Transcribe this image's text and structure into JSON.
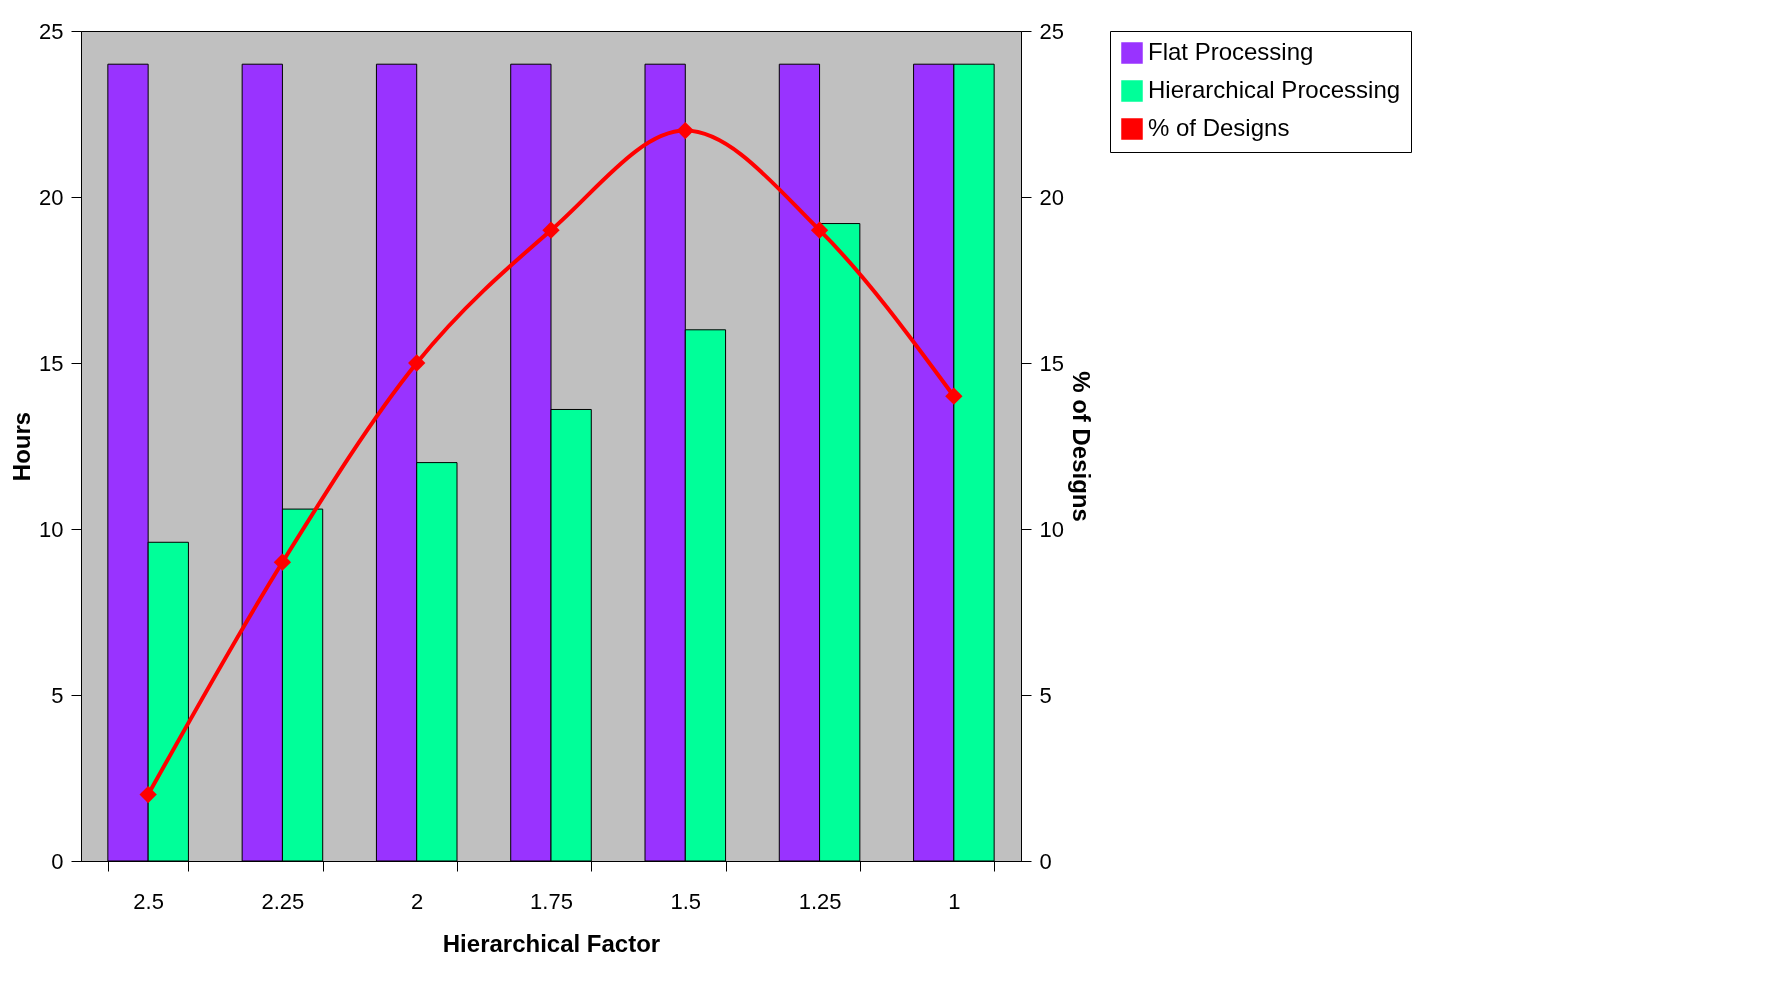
{
  "chart_data": {
    "type": "bar",
    "xlabel": "Hierarchical Factor",
    "ylabel": "Hours",
    "y2label": "% of Designs",
    "categories": [
      "2.5",
      "2.25",
      "2",
      "1.75",
      "1.5",
      "1.25",
      "1"
    ],
    "series": [
      {
        "name": "Flat Processing",
        "color": "#9933ff",
        "values": [
          24,
          24,
          24,
          24,
          24,
          24,
          24
        ]
      },
      {
        "name": "Hierarchical Processing",
        "color": "#00ff99",
        "values": [
          9.6,
          10.6,
          12,
          13.6,
          16,
          19.2,
          24
        ]
      },
      {
        "name": "% of Designs",
        "type": "line",
        "axis": "y2",
        "color": "#ff0000",
        "marker": "diamond",
        "values": [
          2,
          9,
          15,
          19,
          22,
          19,
          14
        ]
      }
    ],
    "ylim": [
      0,
      25
    ],
    "yticks": [
      0,
      5,
      10,
      15,
      20,
      25
    ],
    "y2lim": [
      0,
      25
    ],
    "y2ticks": [
      0,
      5,
      10,
      15,
      20,
      25
    ],
    "grid": false,
    "legend": "right"
  }
}
